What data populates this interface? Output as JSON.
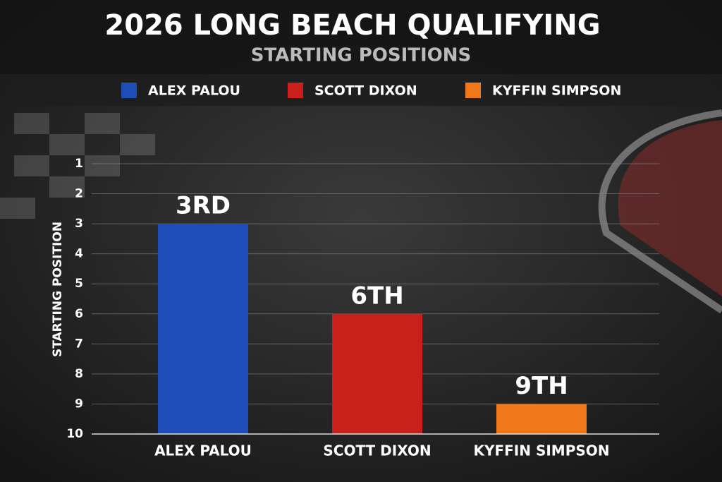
{
  "chart_data": {
    "type": "bar",
    "title": "2026 LONG BEACH QUALIFYING",
    "subtitle": "STARTING POSITIONS",
    "y_label": "STARTING POSITION",
    "categories": [
      "ALEX PALOU",
      "SCOTT DIXON",
      "KYFFIN SIMPSON"
    ],
    "series": [
      {
        "name": "ALEX PALOU",
        "color": "#1f4db8"
      },
      {
        "name": "SCOTT DIXON",
        "color": "#c9201b"
      },
      {
        "name": "KYFFIN SIMPSON",
        "color": "#f07818"
      }
    ],
    "values": [
      3,
      6,
      9
    ],
    "value_labels": [
      "3RD",
      "6TH",
      "9TH"
    ],
    "ylim": [
      10,
      1
    ],
    "yticks": [
      1,
      2,
      3,
      4,
      5,
      6,
      7,
      8,
      9,
      10
    ],
    "grid": true
  }
}
